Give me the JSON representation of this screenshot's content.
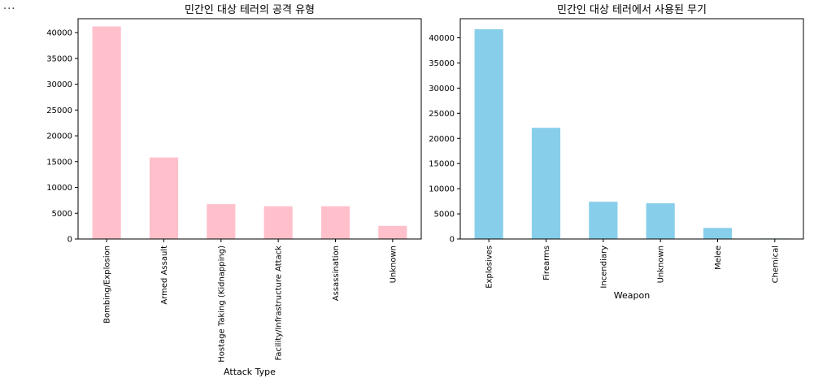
{
  "output_prompt": "...",
  "chart_data": [
    {
      "type": "bar",
      "title": "민간인 대상 테러의 공격 유형",
      "xlabel": "Attack Type",
      "ylabel": "",
      "categories": [
        "Bombing/Explosion",
        "Armed Assault",
        "Hostage Taking (Kidnapping)",
        "Facility/Infrastructure Attack",
        "Assassination",
        "Unknown"
      ],
      "values": [
        41200,
        15800,
        6750,
        6350,
        6350,
        2550
      ],
      "yticks": [
        0,
        5000,
        10000,
        15000,
        20000,
        25000,
        30000,
        35000,
        40000
      ],
      "ylim": [
        0,
        42700
      ],
      "color": "#ffc0cb",
      "grid": false
    },
    {
      "type": "bar",
      "title": "민간인 대상 테러에서 사용된 무기",
      "xlabel": "Weapon",
      "ylabel": "",
      "categories": [
        "Explosives",
        "Firearms",
        "Incendiary",
        "Unknown",
        "Melee",
        "Chemical"
      ],
      "values": [
        41700,
        22100,
        7400,
        7100,
        2200,
        100
      ],
      "yticks": [
        0,
        5000,
        10000,
        15000,
        20000,
        25000,
        30000,
        35000,
        40000
      ],
      "ylim": [
        0,
        43800
      ],
      "color": "#87ceeb",
      "grid": false
    }
  ]
}
